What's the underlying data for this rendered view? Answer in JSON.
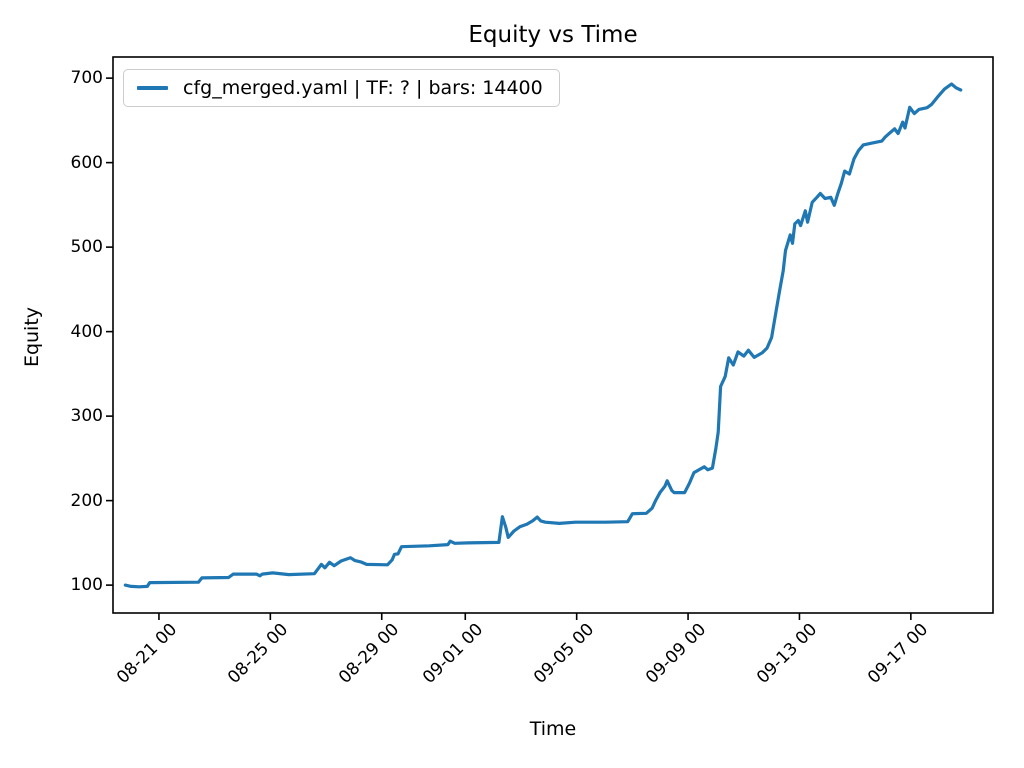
{
  "chart_data": {
    "type": "line",
    "title": "Equity vs Time",
    "xlabel": "Time",
    "ylabel": "Equity",
    "legend_position": "upper left",
    "legend": [
      "cfg_merged.yaml | TF: ? | bars: 14400"
    ],
    "line_color": "#1f77b4",
    "axis_color": "#000000",
    "grid": false,
    "ylim": [
      67,
      725
    ],
    "y_ticks": [
      100,
      200,
      300,
      400,
      500,
      600,
      700
    ],
    "xlim_days_rel_08_21": [
      -1.65,
      29.95
    ],
    "x_ticks": [
      {
        "label": "08-21 00",
        "d": 0
      },
      {
        "label": "08-25 00",
        "d": 4
      },
      {
        "label": "08-29 00",
        "d": 8
      },
      {
        "label": "09-01 00",
        "d": 11
      },
      {
        "label": "09-05 00",
        "d": 15
      },
      {
        "label": "09-09 00",
        "d": 19
      },
      {
        "label": "09-13 00",
        "d": 23
      },
      {
        "label": "09-17 00",
        "d": 27
      }
    ],
    "series": [
      {
        "name": "cfg_merged.yaml | TF: ? | bars: 14400",
        "points": [
          [
            "08-19 19:00",
            100
          ],
          [
            "08-20 00:00",
            98.5
          ],
          [
            "08-20 07:00",
            98
          ],
          [
            "08-20 14:00",
            98.5
          ],
          [
            "08-20 16:00",
            103
          ],
          [
            "08-22 10:00",
            103.5
          ],
          [
            "08-22 13:00",
            108.5
          ],
          [
            "08-23 12:00",
            109
          ],
          [
            "08-23 16:00",
            113
          ],
          [
            "08-24 12:00",
            113
          ],
          [
            "08-24 15:00",
            111
          ],
          [
            "08-24 17:00",
            113
          ],
          [
            "08-25 02:00",
            114.5
          ],
          [
            "08-25 16:00",
            112.5
          ],
          [
            "08-26 14:00",
            113.5
          ],
          [
            "08-26 18:00",
            121
          ],
          [
            "08-26 20:00",
            124.5
          ],
          [
            "08-26 23:00",
            120.5
          ],
          [
            "08-27 03:00",
            127
          ],
          [
            "08-27 07:00",
            123
          ],
          [
            "08-27 13:00",
            128.5
          ],
          [
            "08-27 21:00",
            132.5
          ],
          [
            "08-28 01:00",
            129
          ],
          [
            "08-28 06:00",
            127.5
          ],
          [
            "08-28 11:00",
            124.5
          ],
          [
            "08-29 05:00",
            124
          ],
          [
            "08-29 09:00",
            130
          ],
          [
            "08-29 11:00",
            136.5
          ],
          [
            "08-29 14:00",
            137
          ],
          [
            "08-29 17:00",
            145.5
          ],
          [
            "08-30 17:00",
            146.5
          ],
          [
            "08-31 09:00",
            148
          ],
          [
            "08-31 11:00",
            152
          ],
          [
            "08-31 15:00",
            149.5
          ],
          [
            "09-01 02:00",
            150
          ],
          [
            "09-02 05:00",
            150.5
          ],
          [
            "09-02 08:00",
            181
          ],
          [
            "09-02 11:00",
            168
          ],
          [
            "09-02 13:00",
            156.5
          ],
          [
            "09-02 18:00",
            164
          ],
          [
            "09-02 23:00",
            169
          ],
          [
            "09-03 05:00",
            172
          ],
          [
            "09-03 10:00",
            176
          ],
          [
            "09-03 14:00",
            180.5
          ],
          [
            "09-03 17:00",
            176
          ],
          [
            "09-03 21:00",
            174.5
          ],
          [
            "09-04 09:00",
            173
          ],
          [
            "09-04 23:00",
            174.5
          ],
          [
            "09-06 01:00",
            174.5
          ],
          [
            "09-06 20:00",
            175
          ],
          [
            "09-07 00:00",
            184.5
          ],
          [
            "09-07 12:00",
            185
          ],
          [
            "09-07 17:00",
            191
          ],
          [
            "09-07 20:00",
            200
          ],
          [
            "09-08 00:00",
            210
          ],
          [
            "09-08 04:00",
            217
          ],
          [
            "09-08 06:00",
            223.5
          ],
          [
            "09-08 10:00",
            212
          ],
          [
            "09-08 12:00",
            209.5
          ],
          [
            "09-08 21:00",
            209.5
          ],
          [
            "09-09 01:00",
            220
          ],
          [
            "09-09 05:00",
            233
          ],
          [
            "09-09 10:00",
            237
          ],
          [
            "09-09 14:00",
            240
          ],
          [
            "09-09 17:00",
            236.5
          ],
          [
            "09-09 21:00",
            238.5
          ],
          [
            "09-10 00:00",
            262
          ],
          [
            "09-10 02:00",
            281
          ],
          [
            "09-10 04:00",
            335
          ],
          [
            "09-10 08:00",
            347
          ],
          [
            "09-10 11:00",
            369
          ],
          [
            "09-10 15:00",
            360.5
          ],
          [
            "09-10 19:00",
            376
          ],
          [
            "09-11 00:00",
            371
          ],
          [
            "09-11 04:00",
            378
          ],
          [
            "09-11 09:00",
            369.5
          ],
          [
            "09-11 16:00",
            375
          ],
          [
            "09-11 20:00",
            380.5
          ],
          [
            "09-12 00:00",
            393
          ],
          [
            "09-12 04:00",
            425
          ],
          [
            "09-12 07:00",
            449
          ],
          [
            "09-12 10:00",
            472
          ],
          [
            "09-12 12:00",
            496
          ],
          [
            "09-12 16:00",
            514.5
          ],
          [
            "09-12 18:00",
            504.5
          ],
          [
            "09-12 20:00",
            527.5
          ],
          [
            "09-12 23:00",
            531.5
          ],
          [
            "09-13 01:00",
            525.5
          ],
          [
            "09-13 05:00",
            543
          ],
          [
            "09-13 07:00",
            529.5
          ],
          [
            "09-13 11:00",
            553
          ],
          [
            "09-13 15:00",
            559
          ],
          [
            "09-13 18:00",
            563.5
          ],
          [
            "09-13 22:00",
            557.5
          ],
          [
            "09-14 03:00",
            559
          ],
          [
            "09-14 06:00",
            549.5
          ],
          [
            "09-14 09:00",
            563
          ],
          [
            "09-14 12:00",
            575
          ],
          [
            "09-14 15:00",
            590
          ],
          [
            "09-14 19:00",
            586.5
          ],
          [
            "09-14 23:00",
            604.5
          ],
          [
            "09-15 03:00",
            614.5
          ],
          [
            "09-15 07:00",
            621
          ],
          [
            "09-15 14:00",
            623
          ],
          [
            "09-15 23:00",
            625.5
          ],
          [
            "09-16 02:00",
            630.5
          ],
          [
            "09-16 07:00",
            636.5
          ],
          [
            "09-16 10:00",
            640
          ],
          [
            "09-16 13:00",
            634.5
          ],
          [
            "09-16 17:00",
            648
          ],
          [
            "09-16 19:00",
            641
          ],
          [
            "09-16 23:00",
            665.5
          ],
          [
            "09-17 03:00",
            658
          ],
          [
            "09-17 07:00",
            663
          ],
          [
            "09-17 14:00",
            665
          ],
          [
            "09-17 18:00",
            669
          ],
          [
            "09-17 23:00",
            677.5
          ],
          [
            "09-18 05:00",
            687
          ],
          [
            "09-18 11:00",
            693
          ],
          [
            "09-18 15:00",
            688.5
          ],
          [
            "09-18 19:00",
            686
          ]
        ]
      }
    ]
  }
}
